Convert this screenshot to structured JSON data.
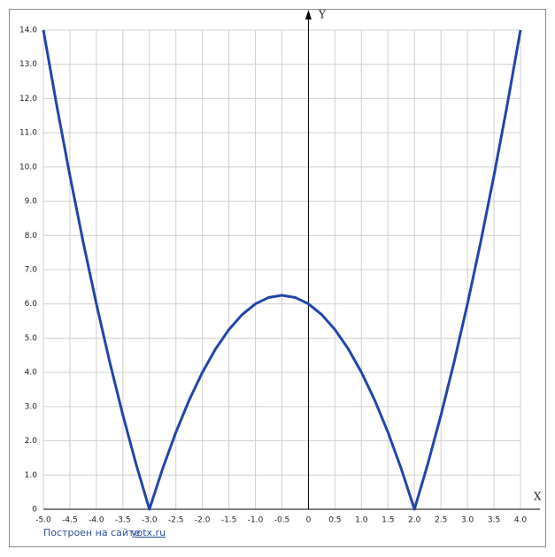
{
  "chart_data": {
    "type": "line",
    "xlabel": "X",
    "ylabel": "Y",
    "x": [
      -5,
      -4.75,
      -4.5,
      -4.25,
      -4,
      -3.75,
      -3.5,
      -3.25,
      -3,
      -2.75,
      -2.5,
      -2.25,
      -2,
      -1.75,
      -1.5,
      -1.25,
      -1,
      -0.75,
      -0.5,
      -0.25,
      0,
      0.25,
      0.5,
      0.75,
      1,
      1.25,
      1.5,
      1.75,
      2,
      2.25,
      2.5,
      2.75,
      3,
      3.25,
      3.5,
      3.75,
      4
    ],
    "values": [
      14,
      11.8125,
      9.75,
      7.8125,
      6,
      4.3125,
      2.75,
      1.3125,
      0,
      1.1875,
      2.25,
      3.1875,
      4,
      4.6875,
      5.25,
      5.6875,
      6,
      6.1875,
      6.25,
      6.1875,
      6,
      5.6875,
      5.25,
      4.6875,
      4,
      3.1875,
      2.25,
      1.1875,
      0,
      1.3125,
      2.75,
      4.3125,
      6,
      7.8125,
      9.75,
      11.8125,
      14
    ],
    "color": "#2244aa",
    "xlim": [
      -5,
      4
    ],
    "ylim": [
      0,
      14
    ],
    "xticks": [
      {
        "value": -5,
        "label": "-5.0"
      },
      -4.5,
      {
        "value": -4,
        "label": "-4.0"
      },
      -3.5,
      {
        "value": -3,
        "label": "-3.0"
      },
      -2.5,
      {
        "value": -2,
        "label": "-2.0"
      },
      -1.5,
      {
        "value": -1,
        "label": "-1.0"
      },
      -0.5,
      0,
      0.5,
      {
        "value": 1,
        "label": "1.0"
      },
      1.5,
      {
        "value": 2,
        "label": "2.0"
      },
      2.5,
      {
        "value": 3,
        "label": "3.0"
      },
      3.5,
      {
        "value": 4,
        "label": "4.0"
      }
    ],
    "yticks": [
      0,
      {
        "value": 1,
        "label": "1.0"
      },
      {
        "value": 2,
        "label": "2.0"
      },
      {
        "value": 3,
        "label": "3.0"
      },
      {
        "value": 4,
        "label": "4.0"
      },
      {
        "value": 5,
        "label": "5.0"
      },
      {
        "value": 6,
        "label": "6.0"
      },
      {
        "value": 7,
        "label": "7.0"
      },
      {
        "value": 8,
        "label": "8.0"
      },
      {
        "value": 9,
        "label": "9.0"
      },
      {
        "value": 10,
        "label": "10.0"
      },
      {
        "value": 11,
        "label": "11.0"
      },
      {
        "value": 12,
        "label": "12.0"
      },
      {
        "value": 13,
        "label": "13.0"
      },
      {
        "value": 14,
        "label": "14.0"
      }
    ],
    "grid": true,
    "footer_text": "Построен на сайте",
    "footer_link": "yotx.ru"
  }
}
